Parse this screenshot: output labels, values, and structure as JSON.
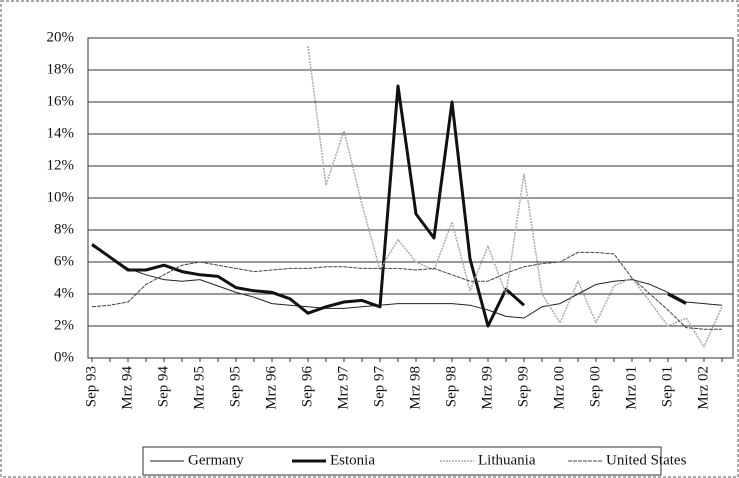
{
  "chart_data": {
    "type": "line",
    "categories": [
      "Sep 93",
      null,
      "Mrz 94",
      null,
      "Sep 94",
      null,
      "Mrz 95",
      null,
      "Sep 95",
      null,
      "Mrz 96",
      null,
      "Sep 96",
      null,
      "Mrz 97",
      null,
      "Sep 97",
      null,
      "Mrz 98",
      null,
      "Sep 98",
      null,
      "Mrz 99",
      null,
      "Sep 99",
      null,
      "Mrz 00",
      null,
      "Sep 00",
      null,
      "Mrz 01",
      null,
      "Sep 01",
      null,
      "Mrz 02",
      null
    ],
    "series": [
      {
        "name": "Germany",
        "color": "#222222",
        "width": 1,
        "dash": "none",
        "values": [
          7.0,
          6.3,
          5.6,
          5.2,
          4.9,
          4.8,
          4.9,
          4.5,
          4.1,
          3.8,
          3.4,
          3.3,
          3.2,
          3.1,
          3.1,
          3.2,
          3.3,
          3.4,
          3.4,
          3.4,
          3.4,
          3.3,
          3.0,
          2.6,
          2.5,
          3.2,
          3.4,
          4.0,
          4.6,
          4.8,
          4.9,
          4.6,
          4.1,
          3.5,
          3.4,
          3.3
        ]
      },
      {
        "name": "Estonia",
        "color": "#111111",
        "width": 3,
        "dash": "none",
        "values": [
          7.1,
          6.3,
          5.5,
          5.5,
          5.8,
          5.4,
          5.2,
          5.1,
          4.4,
          4.2,
          4.1,
          3.7,
          2.8,
          3.2,
          3.5,
          3.6,
          3.2,
          17.0,
          9.0,
          7.5,
          16.0,
          6.2,
          2.0,
          4.3,
          3.3,
          null,
          null,
          null,
          null,
          null,
          null,
          null,
          4.0,
          3.4,
          null,
          null
        ]
      },
      {
        "name": "Lithuania",
        "color": "#aaaaaa",
        "width": 1.5,
        "dash": "2 1",
        "values": [
          null,
          null,
          null,
          null,
          null,
          null,
          null,
          null,
          null,
          null,
          null,
          null,
          19.5,
          10.8,
          14.2,
          9.6,
          5.5,
          7.4,
          6.0,
          5.5,
          8.5,
          4.2,
          7.0,
          4.0,
          11.5,
          4.0,
          2.2,
          4.8,
          2.2,
          4.5,
          5.0,
          3.5,
          2.0,
          2.5,
          0.7,
          3.2
        ]
      },
      {
        "name": "United States",
        "color": "#444444",
        "width": 1,
        "dash": "4 1",
        "values": [
          3.2,
          3.3,
          3.5,
          4.6,
          5.2,
          5.8,
          6.0,
          5.8,
          5.6,
          5.4,
          5.5,
          5.6,
          5.6,
          5.7,
          5.7,
          5.6,
          5.6,
          5.6,
          5.5,
          5.6,
          5.2,
          4.8,
          4.8,
          5.3,
          5.7,
          5.9,
          6.0,
          6.6,
          6.6,
          6.5,
          5.0,
          4.0,
          3.0,
          1.9,
          1.8,
          1.8
        ]
      }
    ],
    "ylim": [
      0,
      20
    ],
    "yticks": [
      {
        "value": 0,
        "label": "0%"
      },
      {
        "value": 2,
        "label": "2%"
      },
      {
        "value": 4,
        "label": "4%"
      },
      {
        "value": 6,
        "label": "6%"
      },
      {
        "value": 8,
        "label": "8%"
      },
      {
        "value": 10,
        "label": "10%"
      },
      {
        "value": 12,
        "label": "12%"
      },
      {
        "value": 14,
        "label": "14%"
      },
      {
        "value": 16,
        "label": "16%"
      },
      {
        "value": 18,
        "label": "18%"
      },
      {
        "value": 20,
        "label": "20%"
      }
    ],
    "grid": true,
    "legend": "bottom"
  }
}
